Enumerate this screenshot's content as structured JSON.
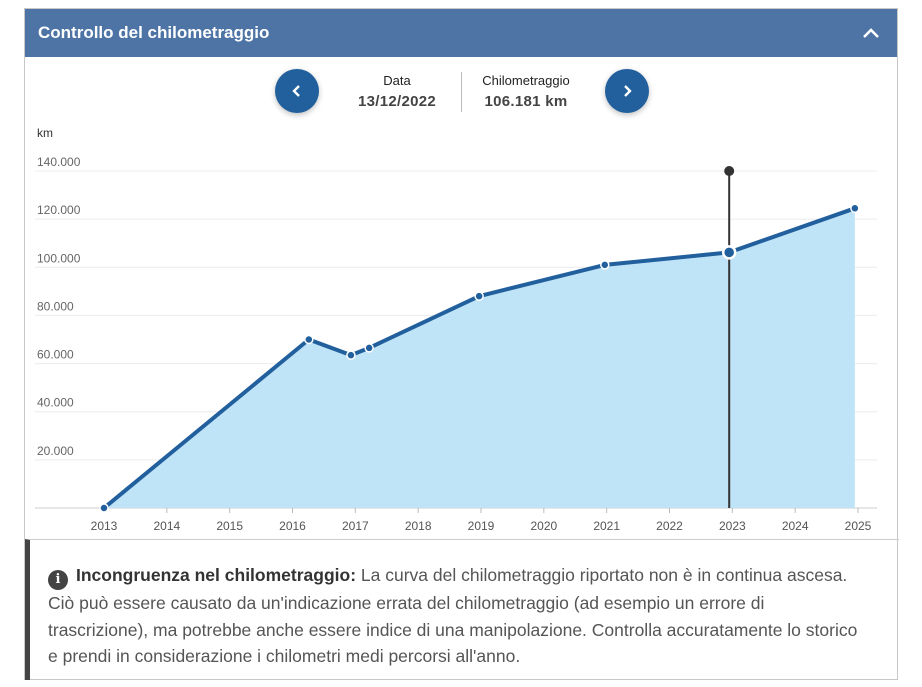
{
  "header": {
    "title": "Controllo del chilometraggio",
    "collapse_icon": "chevron-up-icon"
  },
  "nav": {
    "prev_icon": "chevron-left-icon",
    "next_icon": "chevron-right-icon",
    "date_label": "Data",
    "date_value": "13/12/2022",
    "km_label": "Chilometraggio",
    "km_value": "106.181 km"
  },
  "chart_data": {
    "type": "area",
    "ylabel": "km",
    "ylim": [
      0,
      140000
    ],
    "xlim": [
      2013,
      2025
    ],
    "yticks": [
      "20.000",
      "40.000",
      "60.000",
      "80.000",
      "100.000",
      "120.000",
      "140.000"
    ],
    "xticks": [
      "2013",
      "2014",
      "2015",
      "2016",
      "2017",
      "2018",
      "2019",
      "2020",
      "2021",
      "2022",
      "2023",
      "2024",
      "2025"
    ],
    "grid": true,
    "points": [
      {
        "x": 2013.0,
        "y": 0
      },
      {
        "x": 2016.26,
        "y": 70000
      },
      {
        "x": 2016.93,
        "y": 63500
      },
      {
        "x": 2017.22,
        "y": 66500
      },
      {
        "x": 2018.97,
        "y": 88000
      },
      {
        "x": 2020.97,
        "y": 101000
      },
      {
        "x": 2022.95,
        "y": 106181
      },
      {
        "x": 2024.95,
        "y": 124500
      }
    ],
    "selected_index": 6,
    "colors": {
      "line": "#215f9d",
      "fill": "#bfe3f7",
      "marker": "#333333"
    }
  },
  "notice": {
    "icon": "info-icon",
    "title": "Incongruenza nel chilometraggio:",
    "text": " La curva del chilometraggio riportato non è in continua ascesa. Ciò può essere causato da un'indicazione errata del chilometraggio (ad esempio un errore di trascrizione), ma potrebbe anche essere indice di una manipolazione. Controlla accuratamente lo storico e prendi in considerazione i chilometri medi percorsi all'anno."
  }
}
